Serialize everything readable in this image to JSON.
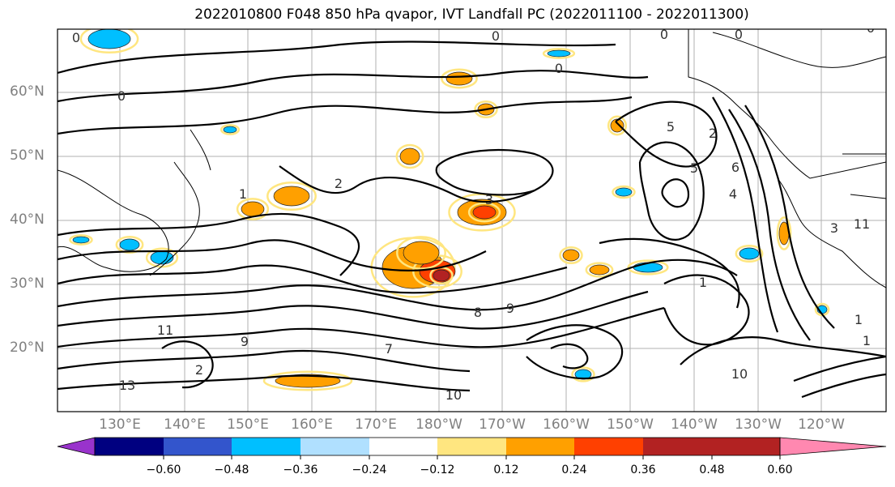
{
  "title": "2022010800 F048 850 hPa qvapor, IVT Landfall PC (2022011100 - 2022011300)",
  "map": {
    "lat_labels": [
      "60°N",
      "50°N",
      "40°N",
      "30°N",
      "20°N"
    ],
    "lon_labels": [
      "130°E",
      "140°E",
      "150°E",
      "160°E",
      "170°E",
      "180°W",
      "170°W",
      "160°W",
      "150°W",
      "140°W",
      "130°W",
      "120°W"
    ],
    "contour_labels": [
      "0",
      "0",
      "0",
      "0",
      "0",
      "0",
      "0",
      "1",
      "2",
      "3",
      "4",
      "5",
      "5",
      "6",
      "7",
      "8",
      "9",
      "10",
      "11",
      "13",
      "1",
      "1",
      "1",
      "2",
      "2",
      "3",
      "9",
      "10",
      "11"
    ]
  },
  "colorbar": {
    "tick_labels": [
      "−0.60",
      "−0.48",
      "−0.36",
      "−0.24",
      "−0.12",
      "0.12",
      "0.24",
      "0.36",
      "0.48",
      "0.60"
    ],
    "colors": [
      "#9933cc",
      "#000080",
      "#3355cc",
      "#00bfff",
      "#b0e0ff",
      "#ffffff",
      "#ffe680",
      "#ffa000",
      "#ff4000",
      "#b22222",
      "#ff88b0"
    ]
  }
}
